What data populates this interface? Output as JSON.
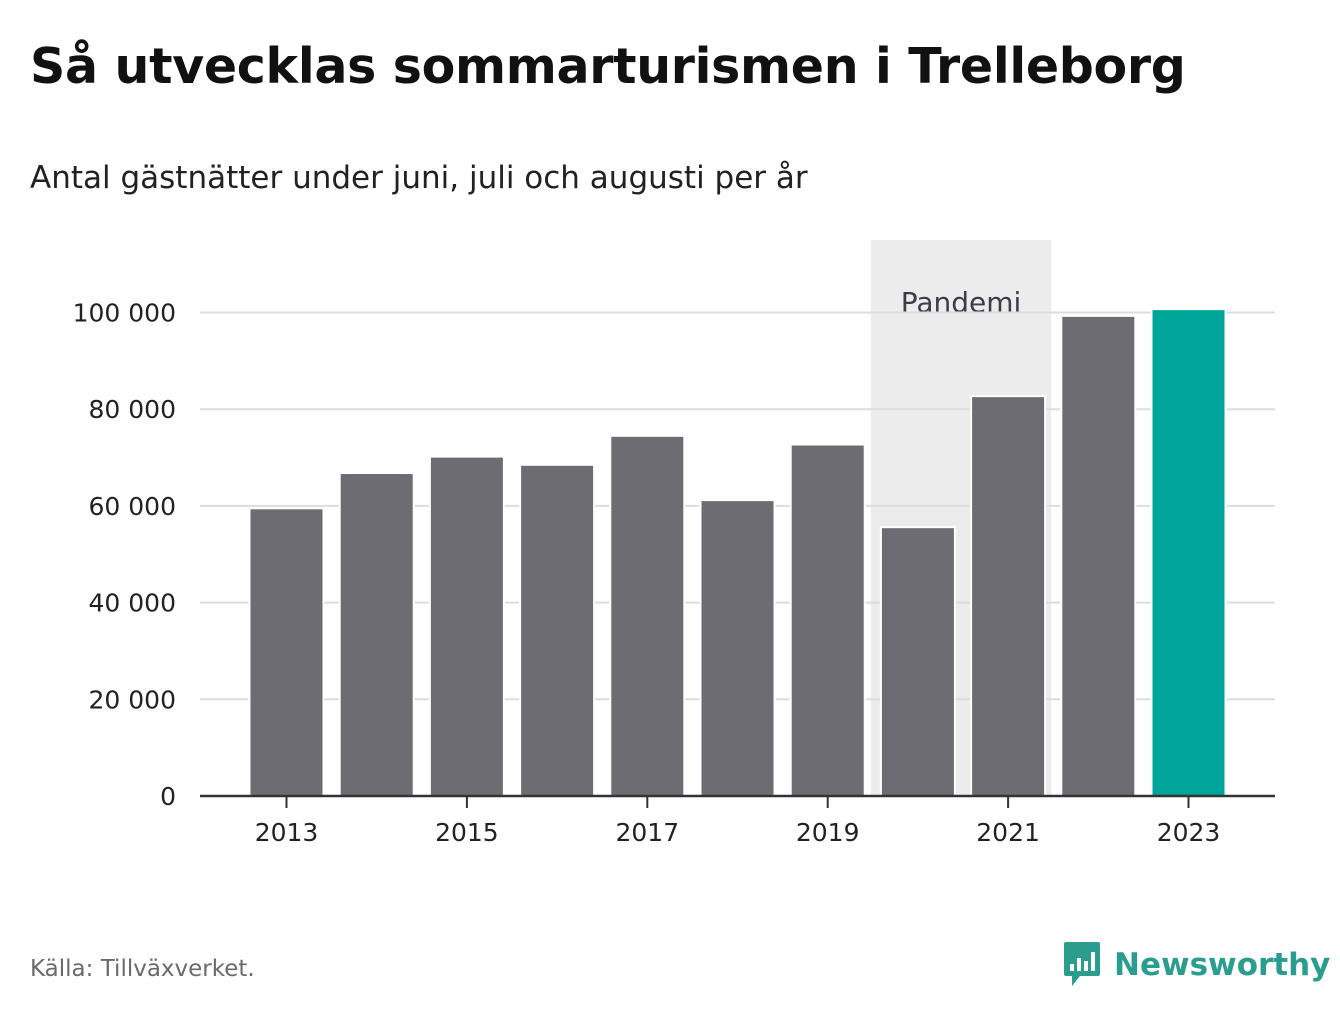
{
  "title": "Så utvecklas sommarturismen i Trelleborg",
  "subtitle": "Antal gästnätter under juni, juli och augusti per år",
  "source": "Källa: Tillväxverket.",
  "brand": "Newsworthy",
  "colors": {
    "bar": "#6d6c72",
    "highlight": "#00a59a",
    "shade": "#ececec",
    "grid": "#dddddd",
    "axis": "#333333",
    "brand": "#2a9d8f"
  },
  "chart_data": {
    "type": "bar",
    "categories": [
      "2013",
      "2014",
      "2015",
      "2016",
      "2017",
      "2018",
      "2019",
      "2020",
      "2021",
      "2022",
      "2023"
    ],
    "values": [
      59500,
      66800,
      70200,
      68500,
      74500,
      61200,
      72700,
      55600,
      82700,
      99300,
      100700
    ],
    "highlight_category": "2023",
    "x_tick_labels": [
      "2013",
      "2015",
      "2017",
      "2019",
      "2021",
      "2023"
    ],
    "y_ticks": [
      0,
      20000,
      40000,
      60000,
      80000,
      100000
    ],
    "y_tick_labels": [
      "0",
      "20 000",
      "40 000",
      "60 000",
      "80 000",
      "100 000"
    ],
    "ylim": [
      0,
      115000
    ],
    "grid": "horizontal",
    "xlabel": "",
    "ylabel": "",
    "annotation": {
      "label": "Pandemi",
      "from_category": "2020",
      "to_category": "2021"
    }
  }
}
